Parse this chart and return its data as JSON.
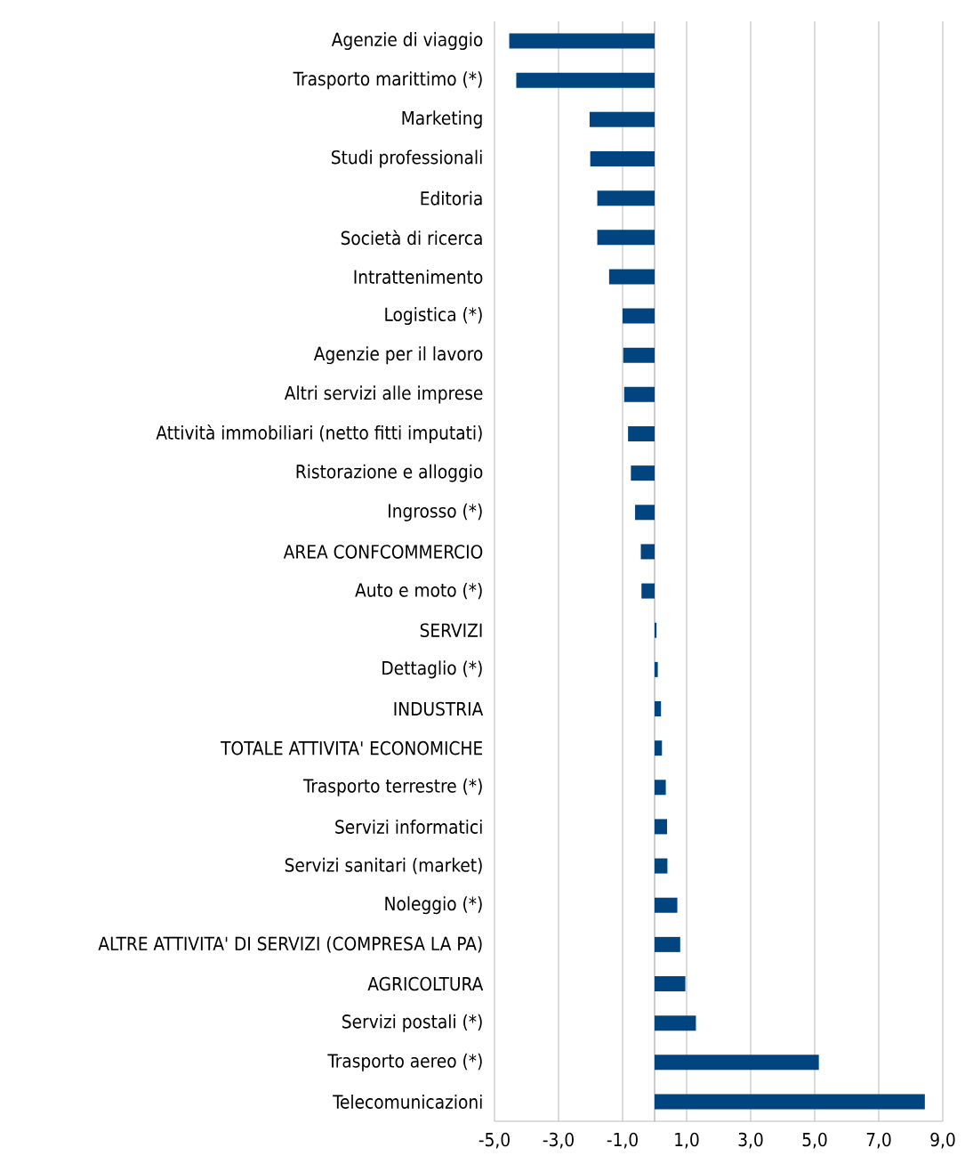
{
  "chart_data": {
    "type": "bar",
    "orientation": "horizontal",
    "categories": [
      "Agenzie di viaggio",
      "Trasporto marittimo (*)",
      "Marketing",
      "Studi professionali",
      "Editoria",
      "Società di ricerca",
      "Intrattenimento",
      "Logistica (*)",
      "Agenzie per il lavoro",
      "Altri servizi alle imprese",
      "Attività immobiliari (netto fitti imputati)",
      "Ristorazione e alloggio",
      "Ingrosso (*)",
      "AREA CONFCOMMERCIO",
      "Auto e moto (*)",
      "SERVIZI",
      "Dettaglio (*)",
      "INDUSTRIA",
      "TOTALE ATTIVITA' ECONOMICHE",
      "Trasporto terrestre (*)",
      "Servizi informatici",
      "Servizi sanitari (market)",
      "Noleggio (*)",
      "ALTRE ATTIVITA' DI SERVIZI (COMPRESA LA PA)",
      "AGRICOLTURA",
      "Servizi postali (*)",
      "Trasporto aereo (*)",
      "Telecomunicazioni"
    ],
    "values": [
      -4.54,
      -4.32,
      -2.03,
      -2.01,
      -1.79,
      -1.79,
      -1.42,
      -1.0,
      -0.98,
      -0.95,
      -0.83,
      -0.74,
      -0.61,
      -0.43,
      -0.41,
      0.06,
      0.1,
      0.2,
      0.23,
      0.35,
      0.39,
      0.4,
      0.71,
      0.8,
      0.96,
      1.29,
      5.13,
      8.44
    ],
    "color": "#00457f",
    "xlim": [
      -5,
      9
    ],
    "xticks": [
      {
        "value": -5,
        "label": "-5,0"
      },
      {
        "value": -3,
        "label": "-3,0"
      },
      {
        "value": -1,
        "label": "-1,0"
      },
      {
        "value": 1,
        "label": "1,0"
      },
      {
        "value": 3,
        "label": "3,0"
      },
      {
        "value": 5,
        "label": "5,0"
      },
      {
        "value": 7,
        "label": "7,0"
      },
      {
        "value": 9,
        "label": "9,0"
      }
    ],
    "grid": "x"
  }
}
